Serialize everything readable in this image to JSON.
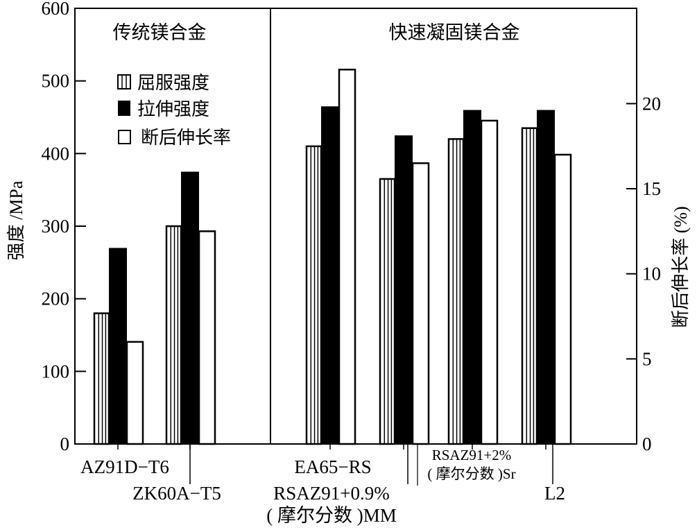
{
  "chart_data": {
    "type": "bar",
    "group_titles": [
      "传统镁合金",
      "快速凝固镁合金"
    ],
    "categories": [
      "AZ91D-T6",
      "ZK60A-T5",
      "EA65-RS",
      "RSAZ91+0.9%\n( 摩尔分数 )MM",
      "RSAZ91+2%\n( 摩尔分数 )Sr",
      "L2"
    ],
    "category_lines": [
      [
        "AZ91D−T6"
      ],
      [
        "ZK60A−T5"
      ],
      [
        "EA65−RS"
      ],
      [
        "RSAZ91+0.9%",
        "( 摩尔分数 )MM"
      ],
      [
        "RSAZ91+2%",
        "( 摩尔分数 )Sr"
      ],
      [
        "L2"
      ]
    ],
    "series": [
      {
        "name": "屈服强度",
        "axis": "left",
        "pattern": "striped",
        "values": [
          180,
          300,
          410,
          365,
          420,
          435
        ]
      },
      {
        "name": "拉伸强度",
        "axis": "left",
        "pattern": "solid-black",
        "values": [
          270,
          375,
          465,
          425,
          460,
          460
        ]
      },
      {
        "name": "断后伸长率",
        "axis": "right",
        "pattern": "white",
        "values": [
          6,
          12.5,
          22,
          16.5,
          19,
          17
        ]
      }
    ],
    "ylabel": "强度 /MPa",
    "ylabel_right": "断后伸长率 (%)",
    "ylim": [
      0,
      600
    ],
    "ylim_right": [
      0,
      25.6
    ],
    "yticks": [
      "0",
      "100",
      "200",
      "300",
      "400",
      "500",
      "600"
    ],
    "yticks_right": [
      "0",
      "5",
      "10",
      "15",
      "20"
    ],
    "legend_placement": "top-left",
    "grid": false
  }
}
